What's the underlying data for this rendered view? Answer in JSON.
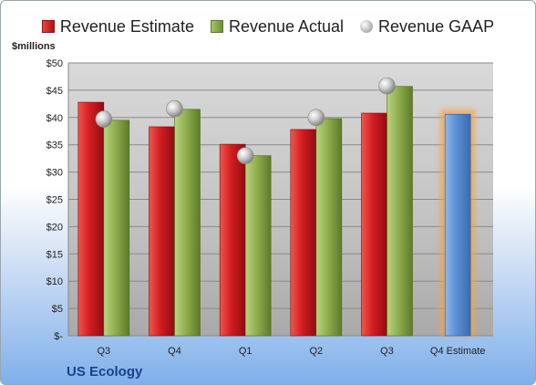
{
  "chart_data": {
    "type": "bar",
    "ylabel": "$millions",
    "ylim": [
      0,
      50
    ],
    "ytick_step": 5,
    "ytick_labels": [
      "$-",
      "$5",
      "$10",
      "$15",
      "$20",
      "$25",
      "$30",
      "$35",
      "$40",
      "$45",
      "$50"
    ],
    "categories": [
      "Q3",
      "Q4",
      "Q1",
      "Q2",
      "Q3",
      "Q4 Estimate"
    ],
    "series": [
      {
        "name": "Revenue Estimate",
        "kind": "bar",
        "color": "#c8171c",
        "values": [
          42.8,
          38.3,
          35.1,
          37.8,
          40.8,
          null
        ]
      },
      {
        "name": "Revenue Actual",
        "kind": "bar",
        "color": "#8aa84a",
        "values": [
          39.5,
          41.5,
          33.0,
          39.8,
          45.7,
          null
        ]
      },
      {
        "name": "Revenue GAAP",
        "kind": "marker",
        "color": "#b8b8b8",
        "values": [
          39.7,
          41.6,
          33.0,
          40.0,
          45.8,
          null
        ]
      }
    ],
    "forecast": {
      "category": "Q4 Estimate",
      "value": 40.6,
      "color": "#5b8fd4",
      "glow": "#f4a24a"
    },
    "grid": true,
    "legend_position": "top"
  },
  "footer": {
    "company": "US Ecology"
  }
}
